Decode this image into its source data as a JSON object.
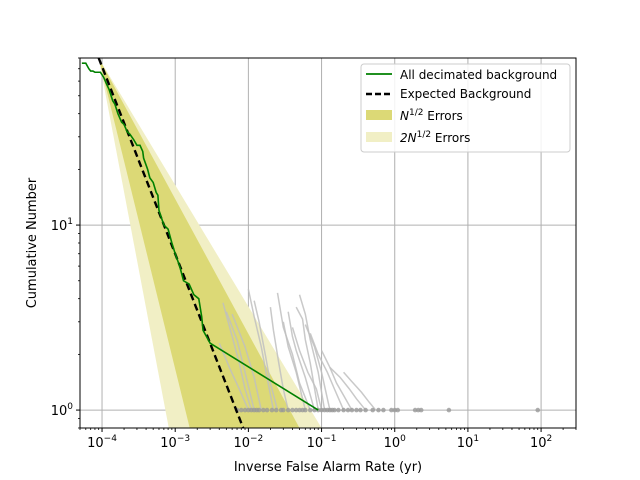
{
  "chart_data": {
    "type": "line",
    "xlabel": "Inverse False Alarm Rate (yr)",
    "ylabel": "Cumulative Number",
    "xscale": "log",
    "yscale": "log",
    "xlim": [
      5e-05,
      300
    ],
    "ylim": [
      0.8,
      80
    ],
    "grid": true,
    "legend_position": "top-right",
    "x_tick_values": [
      0.0001,
      0.001,
      0.01,
      0.1,
      1,
      10,
      100
    ],
    "x_tick_labels": [
      {
        "base": "10",
        "exp": "−4"
      },
      {
        "base": "10",
        "exp": "−3"
      },
      {
        "base": "10",
        "exp": "−2"
      },
      {
        "base": "10",
        "exp": "−1"
      },
      {
        "base": "10",
        "exp": "0"
      },
      {
        "base": "10",
        "exp": "1"
      },
      {
        "base": "10",
        "exp": "2"
      }
    ],
    "y_tick_values": [
      1,
      10
    ],
    "y_tick_labels": [
      {
        "base": "10",
        "exp": "0"
      },
      {
        "base": "10",
        "exp": "1"
      }
    ],
    "legend": [
      {
        "label": "All decimated background",
        "type": "line",
        "color": "#008000"
      },
      {
        "label": "Expected Background",
        "type": "dashed",
        "color": "#000000"
      },
      {
        "label_main": "N",
        "label_sup": "1/2",
        "label_tail": " Errors",
        "type": "patch",
        "color": "#dcd976"
      },
      {
        "label_main": "2N",
        "label_sup": "1/2",
        "label_tail": " Errors",
        "type": "patch",
        "color": "#f1efc5"
      }
    ],
    "colors": {
      "observed": "#008000",
      "expected": "#000000",
      "band1": "#dcd976",
      "band2": "#f1efc5",
      "background_traces": "#bfbfbf",
      "background_points": "#999999",
      "grid": "#b0b0b0"
    },
    "expected_background": {
      "x": [
        9e-05,
        0.0085
      ],
      "y": [
        80,
        0.8
      ]
    },
    "band_n_sqrt": {
      "xlow": 9e-05,
      "xhigh": 0.05,
      "ymin": 0.8,
      "ymax": 80
    },
    "band_2n_sqrt": {
      "xlow": 9e-05,
      "xhigh": 0.1,
      "ymin": 0.8,
      "ymax": 80
    },
    "observed_background": {
      "x": [
        5.3e-05,
        6e-05,
        6.6e-05,
        7e-05,
        7.5e-05,
        8e-05,
        9.5e-05,
        0.000105,
        0.000115,
        0.000125,
        0.00014,
        0.00015,
        0.000165,
        0.000185,
        0.0002,
        0.00022,
        0.00024,
        0.00027,
        0.0003,
        0.00033,
        0.00036,
        0.00037,
        0.00042,
        0.00045,
        0.0005,
        0.00055,
        0.00058,
        0.0006,
        0.0007,
        0.0008,
        0.0009,
        0.001,
        0.00115,
        0.0013,
        0.00155,
        0.0018,
        0.0021,
        0.0023,
        0.0024,
        0.003,
        0.09
      ],
      "y": [
        75,
        75,
        70,
        68,
        68,
        67,
        67,
        63,
        58,
        54,
        47,
        45,
        40,
        36,
        35,
        32,
        31,
        29,
        27,
        27,
        25,
        23,
        20,
        18,
        17,
        15,
        14.5,
        12,
        10,
        9.5,
        8,
        7,
        6,
        5,
        4.8,
        4.2,
        4,
        3.2,
        2.7,
        2.3,
        1
      ]
    },
    "decimated_trials": [
      {
        "x": [
          0.004,
          0.0055,
          0.0075,
          0.01
        ],
        "y": [
          2.3,
          1.7,
          1.3,
          1
        ]
      },
      {
        "x": [
          0.0045,
          0.006,
          0.0075,
          0.009,
          0.011
        ],
        "y": [
          3.8,
          2.5,
          1.8,
          1.3,
          1
        ]
      },
      {
        "x": [
          0.006,
          0.009,
          0.012,
          0.015
        ],
        "y": [
          3.3,
          2.2,
          1.5,
          1
        ]
      },
      {
        "x": [
          0.005,
          0.007,
          0.009,
          0.012
        ],
        "y": [
          3.4,
          2.4,
          1.6,
          1
        ]
      },
      {
        "x": [
          0.01,
          0.012,
          0.015,
          0.018,
          0.022
        ],
        "y": [
          4.5,
          3.2,
          2.2,
          1.5,
          1
        ]
      },
      {
        "x": [
          0.012,
          0.014,
          0.017,
          0.02,
          0.025
        ],
        "y": [
          3.9,
          3.0,
          2.0,
          1.4,
          1
        ]
      },
      {
        "x": [
          0.02,
          0.022,
          0.026,
          0.03,
          0.035
        ],
        "y": [
          3.6,
          2.7,
          1.8,
          1.3,
          1
        ]
      },
      {
        "x": [
          0.025,
          0.03,
          0.04,
          0.05,
          0.07
        ],
        "y": [
          4.3,
          2.8,
          2.0,
          1.4,
          1
        ]
      },
      {
        "x": [
          0.03,
          0.035,
          0.045,
          0.06
        ],
        "y": [
          3.0,
          2.2,
          1.6,
          1
        ]
      },
      {
        "x": [
          0.035,
          0.04,
          0.045,
          0.06,
          0.08
        ],
        "y": [
          3.4,
          2.5,
          2.1,
          1.5,
          1
        ]
      },
      {
        "x": [
          0.04,
          0.05,
          0.065,
          0.085,
          0.1
        ],
        "y": [
          2.8,
          2.1,
          1.6,
          1.3,
          1
        ]
      },
      {
        "x": [
          0.045,
          0.055,
          0.06,
          0.07,
          0.09
        ],
        "y": [
          3.6,
          3.1,
          2.4,
          1.8,
          1
        ]
      },
      {
        "x": [
          0.05,
          0.06,
          0.07,
          0.09,
          0.11
        ],
        "y": [
          4.2,
          3.3,
          2.4,
          1.6,
          1
        ]
      },
      {
        "x": [
          0.06,
          0.08,
          0.1,
          0.13
        ],
        "y": [
          2.9,
          2.2,
          1.6,
          1
        ]
      },
      {
        "x": [
          0.07,
          0.09,
          0.12,
          0.15,
          0.2
        ],
        "y": [
          2.6,
          2.0,
          1.6,
          1.3,
          1
        ]
      },
      {
        "x": [
          0.1,
          0.13,
          0.16,
          0.2,
          0.26
        ],
        "y": [
          2.1,
          1.7,
          1.4,
          1.2,
          1
        ]
      },
      {
        "x": [
          0.13,
          0.18,
          0.24,
          0.3,
          0.4
        ],
        "y": [
          1.7,
          1.5,
          1.3,
          1.15,
          1
        ]
      },
      {
        "x": [
          0.2,
          0.27,
          0.35,
          0.45,
          0.55
        ],
        "y": [
          1.6,
          1.4,
          1.25,
          1.1,
          1
        ]
      }
    ],
    "unit_points_x": [
      0.007,
      0.008,
      0.009,
      0.01,
      0.011,
      0.012,
      0.013,
      0.014,
      0.016,
      0.018,
      0.021,
      0.024,
      0.028,
      0.03,
      0.035,
      0.04,
      0.045,
      0.05,
      0.055,
      0.06,
      0.07,
      0.08,
      0.09,
      0.1,
      0.11,
      0.12,
      0.13,
      0.14,
      0.15,
      0.17,
      0.2,
      0.23,
      0.26,
      0.3,
      0.34,
      0.4,
      0.5,
      0.6,
      0.7,
      0.9,
      1.0,
      1.1,
      1.9,
      2.1,
      2.3,
      5.5,
      90
    ]
  }
}
